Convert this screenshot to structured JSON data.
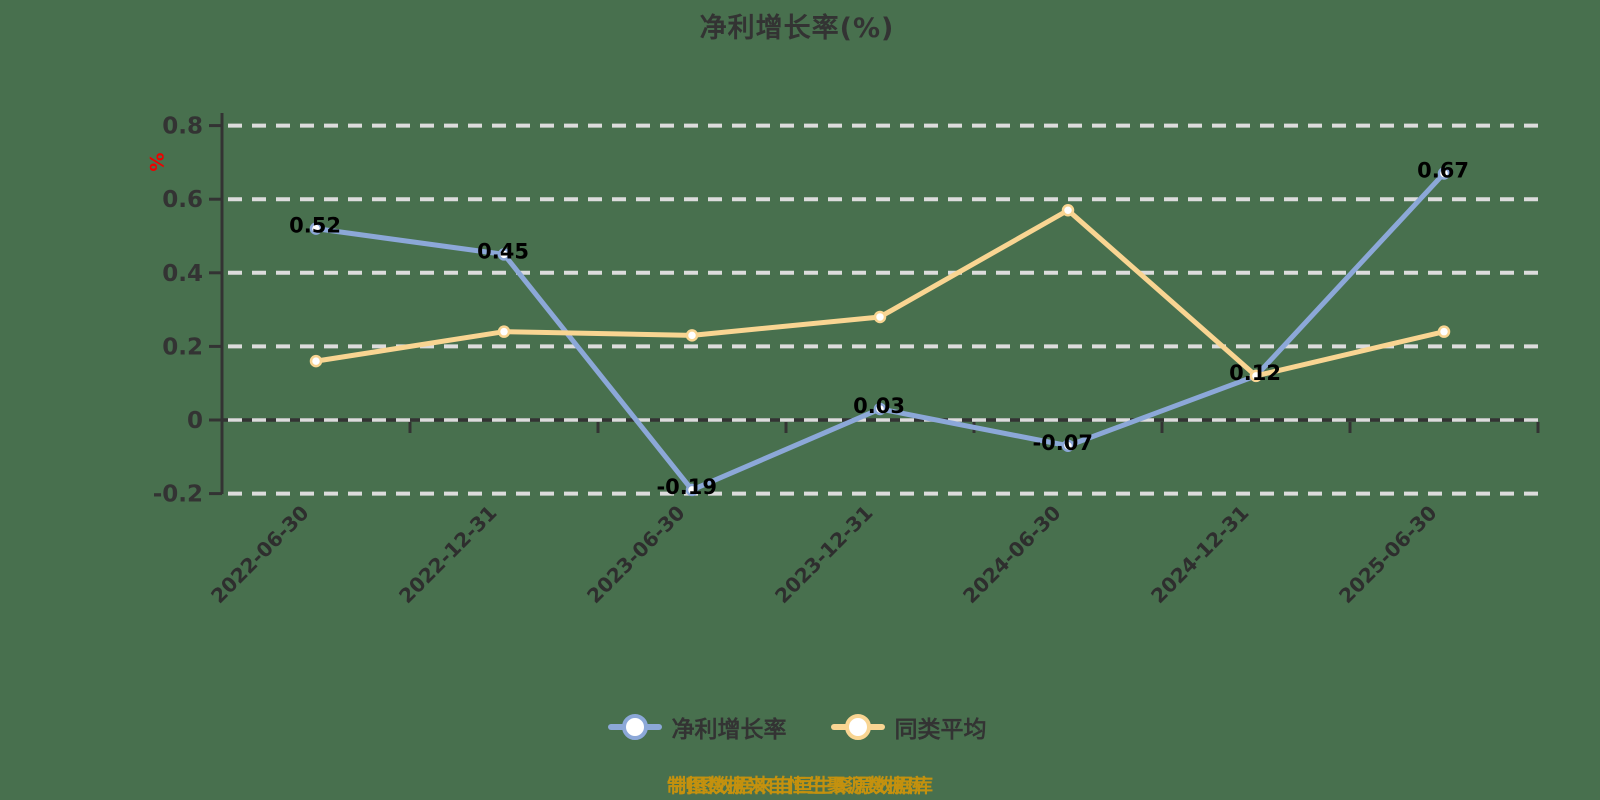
{
  "title": "净利增长率(%)",
  "y_axis": {
    "unit": "%",
    "unit_color": "#EE0000",
    "tick_labels": [
      "-0.2",
      "0",
      "0.2",
      "0.4",
      "0.6",
      "0.8"
    ],
    "min": -0.2,
    "max": 0.8
  },
  "chart_data": {
    "type": "line",
    "title": "净利增长率(%)",
    "categories": [
      "2022-06-30",
      "2022-12-31",
      "2023-06-30",
      "2023-12-31",
      "2024-06-30",
      "2024-12-31",
      "2025-06-30"
    ],
    "series": [
      {
        "name": "净利增长率",
        "color": "#8CA8D8",
        "values": [
          0.52,
          0.45,
          -0.19,
          0.03,
          -0.07,
          0.12,
          0.67
        ],
        "data_labels": [
          "0.52",
          "0.45",
          "-0.19",
          "0.03",
          "-0.07",
          "0.12",
          "0.67"
        ],
        "show_labels": true
      },
      {
        "name": "同类平均",
        "color": "#F9D592",
        "values": [
          0.16,
          0.24,
          0.23,
          0.28,
          0.57,
          0.12,
          0.24
        ],
        "data_labels": [],
        "show_labels": false
      }
    ],
    "ylim": [
      -0.2,
      0.8
    ],
    "grid": true,
    "grid_style": "dashed",
    "legend_position": "bottom"
  },
  "legend": {
    "items": [
      {
        "label": "净利增长率",
        "color": "#8CA8D8"
      },
      {
        "label": "同类平均",
        "color": "#F9D592"
      }
    ]
  },
  "footer": {
    "text": "制图数据来自恒生聚源数据库",
    "color": "#C4910E"
  },
  "colors": {
    "background": "#48704E",
    "axis": "#333333",
    "gridline": "#DCDCDC",
    "title": "#333333",
    "tick_label": "#333333",
    "category_label": "#2E2E2E",
    "data_label": "#000000"
  }
}
